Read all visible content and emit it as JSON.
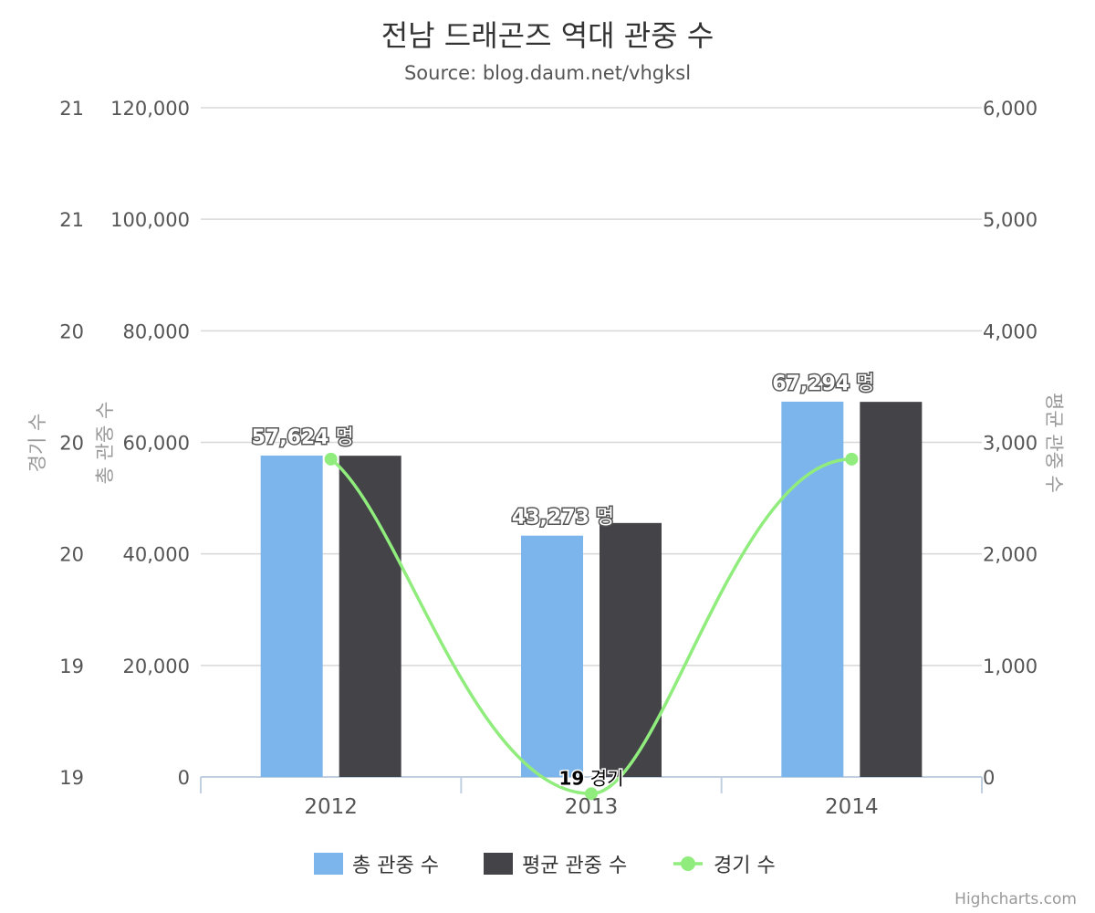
{
  "chart_data": {
    "type": "bar",
    "title": "전남 드래곤즈 역대 관중 수",
    "subtitle": "Source: blog.daum.net/vhgksl",
    "categories": [
      "2012",
      "2013",
      "2014"
    ],
    "series": [
      {
        "name": "총 관중 수",
        "type": "bar",
        "axis": "left-primary",
        "color": "#7cb5ec",
        "values": [
          57624,
          43273,
          67294
        ],
        "data_labels": [
          "57,624 명",
          "43,273 명",
          "67,294 명"
        ]
      },
      {
        "name": "평균 관중 수",
        "type": "bar",
        "axis": "right",
        "color": "#434348",
        "values": [
          2880,
          2277,
          3363
        ]
      },
      {
        "name": "경기 수",
        "type": "line",
        "axis": "left-secondary",
        "color": "#90ed7d",
        "values": [
          20,
          19,
          20
        ],
        "data_labels": [
          null,
          "19 경기",
          null
        ]
      }
    ],
    "axes": {
      "left_primary": {
        "title": "총 관중 수",
        "range": [
          0,
          120000
        ],
        "ticks": [
          "0",
          "20,000",
          "40,000",
          "60,000",
          "80,000",
          "100,000",
          "120,000"
        ]
      },
      "left_secondary": {
        "title": "경기 수",
        "ticks": [
          "19",
          "19",
          "20",
          "20",
          "20",
          "21",
          "21"
        ]
      },
      "right": {
        "title": "평균 관중 수",
        "range": [
          0,
          6000
        ],
        "ticks": [
          "0",
          "1,000",
          "2,000",
          "3,000",
          "4,000",
          "5,000",
          "6,000"
        ]
      }
    },
    "grid": true,
    "legend_position": "bottom-center",
    "credits": "Highcharts.com"
  }
}
